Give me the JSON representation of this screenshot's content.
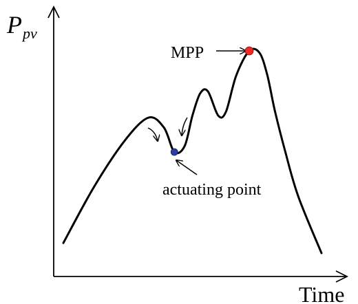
{
  "chart_data": {
    "type": "line",
    "ylabel": "P",
    "ylabel_sub": "pv",
    "xlabel": "Time",
    "x_ticks": "none",
    "y_ticks": "none",
    "grid": false,
    "curve_color": "#000000",
    "series": [
      {
        "x": [
          0.0,
          0.12,
          0.24,
          0.33,
          0.39,
          0.43,
          0.47,
          0.5,
          0.53,
          0.56,
          0.6,
          0.63,
          0.67,
          0.72,
          0.76,
          0.79,
          0.82,
          0.86,
          0.91,
          1.0
        ],
        "y": [
          0.05,
          0.33,
          0.56,
          0.67,
          0.62,
          0.5,
          0.53,
          0.68,
          0.79,
          0.8,
          0.68,
          0.7,
          0.88,
          1.0,
          0.99,
          0.88,
          0.7,
          0.5,
          0.28,
          0.0
        ]
      }
    ],
    "annotations": [
      {
        "text": "MPP",
        "arrow_to": "peak",
        "marker_color": "#ee2a24",
        "x": 0.72,
        "y": 1.0
      },
      {
        "text": "actuating point",
        "arrow_to": "valley",
        "marker_color": "#2b3f9e",
        "x": 0.43,
        "y": 0.5
      }
    ]
  }
}
